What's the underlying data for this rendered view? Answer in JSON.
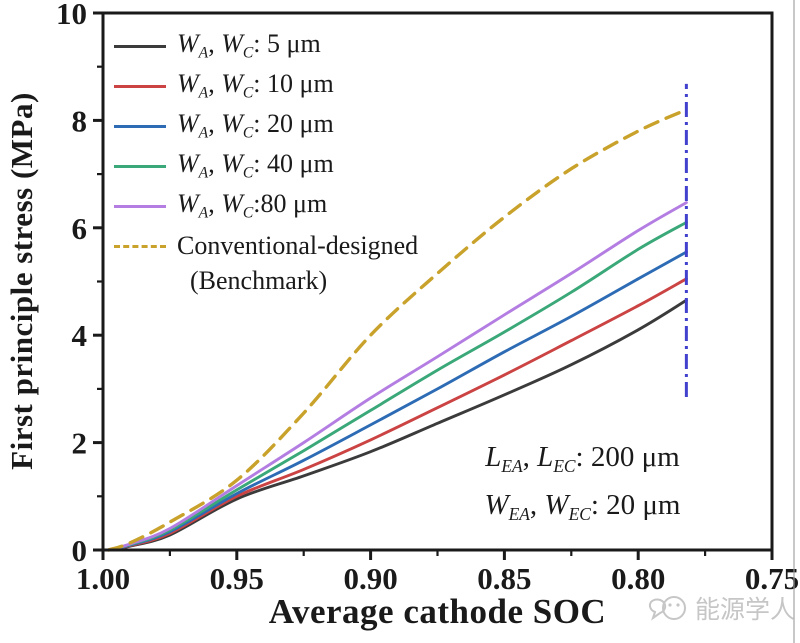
{
  "watermark": {
    "text": "能源学人",
    "logo": "chat-bubbles-logo"
  },
  "legend": {
    "items": [
      {
        "sym": "W",
        "s1": "A",
        "s2": "C",
        "rest": ": 5 μm",
        "color": "#3b3b3b",
        "dash": false,
        "plain": "WA, WC: 5 μm"
      },
      {
        "sym": "W",
        "s1": "A",
        "s2": "C",
        "rest": ": 10 μm",
        "color": "#cb4343",
        "dash": false,
        "plain": "WA, WC: 10 μm"
      },
      {
        "sym": "W",
        "s1": "A",
        "s2": "C",
        "rest": ": 20 μm",
        "color": "#2d6cb5",
        "dash": false,
        "plain": "WA, WC: 20 μm"
      },
      {
        "sym": "W",
        "s1": "A",
        "s2": "C",
        "rest": ": 40 μm",
        "color": "#3aa878",
        "dash": false,
        "plain": "WA, WC: 40 μm"
      },
      {
        "sym": "W",
        "s1": "A",
        "s2": "C",
        "rest": ":80 μm",
        "color": "#b37de2",
        "dash": false,
        "plain": "WA, WC:80 μm"
      },
      {
        "text": "Conventional-designed",
        "text2": "(Benchmark)",
        "color": "#c9a22b",
        "dash": true,
        "plain": "Conventional-designed (Benchmark)"
      }
    ]
  },
  "annotation": {
    "lines": [
      {
        "sym": "L",
        "s1": "EA",
        "s2": "EC",
        "rest": ": 200 μm",
        "plain": "LEA, LEC: 200 μm"
      },
      {
        "sym": "W",
        "s1": "EA",
        "s2": "EC",
        "rest": ": 20 μm",
        "plain": "WEA, WEC: 20 μm"
      }
    ]
  },
  "chart_data": {
    "type": "line",
    "title": "",
    "xlabel": "Average cathode SOC",
    "ylabel": "First principle stress (MPa)",
    "xlim": [
      1.0,
      0.75
    ],
    "x_axis_reversed": true,
    "ylim": [
      0,
      10
    ],
    "grid": false,
    "legend_position": "top-left",
    "x_major_ticks": [
      1.0,
      0.95,
      0.9,
      0.85,
      0.8,
      0.75
    ],
    "x_minor_ticks": [
      0.975,
      0.925,
      0.875,
      0.825,
      0.775
    ],
    "x_tick_labels": [
      "1.00",
      "0.95",
      "0.90",
      "0.85",
      "0.80",
      "0.75"
    ],
    "y_major_ticks": [
      0,
      2,
      4,
      6,
      8,
      10
    ],
    "y_minor_ticks": [
      1,
      3,
      5,
      7,
      9
    ],
    "y_tick_labels": [
      "0",
      "2",
      "4",
      "6",
      "8",
      "10"
    ],
    "x": [
      0.998,
      0.99,
      0.975,
      0.95,
      0.925,
      0.9,
      0.875,
      0.85,
      0.825,
      0.8,
      0.782
    ],
    "series": [
      {
        "name": "WA, WC: 5 μm",
        "color": "#3b3b3b",
        "dash": false,
        "values": [
          0,
          0.07,
          0.28,
          0.95,
          1.38,
          1.83,
          2.36,
          2.89,
          3.45,
          4.1,
          4.65
        ]
      },
      {
        "name": "WA, WC: 10 μm",
        "color": "#cb4343",
        "dash": false,
        "values": [
          0,
          0.08,
          0.31,
          1.0,
          1.5,
          2.05,
          2.65,
          3.26,
          3.9,
          4.55,
          5.05
        ]
      },
      {
        "name": "WA, WC: 20 μm",
        "color": "#2d6cb5",
        "dash": false,
        "values": [
          0,
          0.09,
          0.34,
          1.05,
          1.67,
          2.33,
          3.0,
          3.69,
          4.35,
          5.05,
          5.55
        ]
      },
      {
        "name": "WA, WC: 40 μm",
        "color": "#3aa878",
        "dash": false,
        "values": [
          0,
          0.1,
          0.37,
          1.12,
          1.85,
          2.6,
          3.35,
          4.06,
          4.8,
          5.6,
          6.1
        ]
      },
      {
        "name": "WA, WC: 80 μm",
        "color": "#b37de2",
        "dash": false,
        "values": [
          0,
          0.11,
          0.4,
          1.2,
          2.0,
          2.83,
          3.6,
          4.38,
          5.15,
          5.95,
          6.47
        ]
      },
      {
        "name": "Conventional-designed (Benchmark)",
        "color": "#c9a22b",
        "dash": true,
        "values": [
          0,
          0.13,
          0.52,
          1.3,
          2.55,
          4.0,
          5.15,
          6.2,
          7.1,
          7.8,
          8.2
        ]
      }
    ],
    "vline": {
      "x": 0.782,
      "y_from": 2.85,
      "y_to": 8.68,
      "color": "#4141cd",
      "style": "dash-dot"
    },
    "frame_color": "#1a1a1a"
  }
}
